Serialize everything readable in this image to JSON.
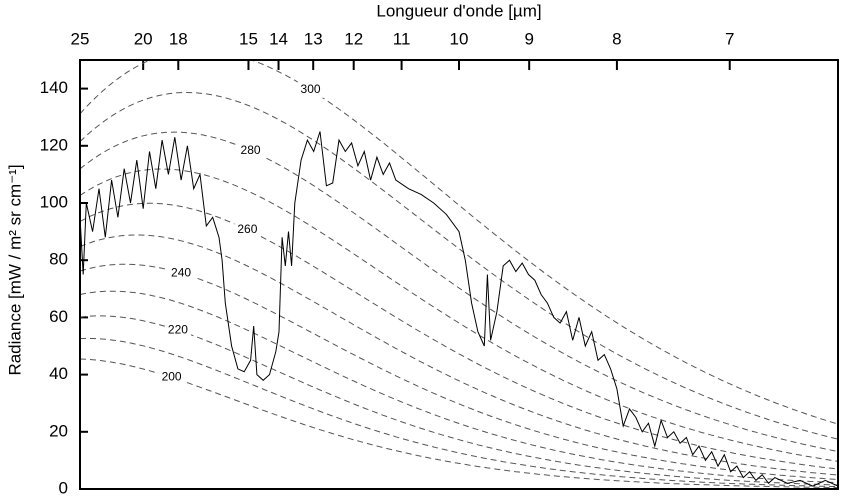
{
  "chart_data": {
    "type": "line",
    "x2_axis_label": "Longueur d'onde [µm]",
    "y_axis_label": "Radiance [mW / m² sr cm⁻¹]",
    "xlim": [
      400,
      1600
    ],
    "ylim": [
      0,
      150
    ],
    "yticks": [
      0,
      20,
      40,
      60,
      80,
      100,
      120,
      140
    ],
    "x2ticks": [
      {
        "value": 400,
        "label": "25"
      },
      {
        "value": 500,
        "label": "20"
      },
      {
        "value": 555.6,
        "label": "18"
      },
      {
        "value": 666.7,
        "label": "15"
      },
      {
        "value": 714.3,
        "label": "14"
      },
      {
        "value": 769.2,
        "label": "13"
      },
      {
        "value": 833.3,
        "label": "12"
      },
      {
        "value": 909.1,
        "label": "11"
      },
      {
        "value": 1000,
        "label": "10"
      },
      {
        "value": 1111.1,
        "label": "9"
      },
      {
        "value": 1250,
        "label": "8"
      },
      {
        "value": 1428.6,
        "label": "7"
      }
    ],
    "reference_curves": {
      "temperatures": [
        200,
        210,
        220,
        230,
        240,
        250,
        260,
        270,
        280,
        290,
        300
      ],
      "labeled": [
        200,
        220,
        240,
        260,
        280,
        300
      ],
      "color": "#555555",
      "dashed": true
    },
    "x": [
      400,
      405,
      410,
      420,
      430,
      440,
      450,
      460,
      470,
      480,
      490,
      500,
      510,
      520,
      530,
      540,
      550,
      560,
      570,
      580,
      590,
      600,
      610,
      620,
      625,
      630,
      640,
      650,
      660,
      670,
      675,
      680,
      690,
      700,
      710,
      715,
      720,
      725,
      730,
      735,
      740,
      750,
      760,
      770,
      780,
      790,
      800,
      810,
      820,
      830,
      840,
      850,
      860,
      870,
      880,
      890,
      900,
      920,
      940,
      960,
      980,
      1000,
      1010,
      1020,
      1030,
      1040,
      1045,
      1050,
      1060,
      1070,
      1080,
      1090,
      1100,
      1110,
      1120,
      1130,
      1140,
      1150,
      1160,
      1170,
      1180,
      1190,
      1200,
      1210,
      1220,
      1230,
      1240,
      1250,
      1260,
      1270,
      1280,
      1290,
      1300,
      1310,
      1320,
      1330,
      1340,
      1350,
      1360,
      1370,
      1380,
      1390,
      1400,
      1410,
      1420,
      1430,
      1440,
      1450,
      1460,
      1470,
      1480,
      1490,
      1500,
      1520,
      1540,
      1560,
      1580,
      1600
    ],
    "series": [
      {
        "color": "#000000",
        "values": [
          95,
          75,
          100,
          90,
          105,
          88,
          108,
          95,
          112,
          100,
          115,
          98,
          118,
          105,
          122,
          110,
          123,
          108,
          120,
          105,
          110,
          92,
          95,
          88,
          80,
          65,
          50,
          42,
          41,
          45,
          57,
          40,
          38,
          40,
          48,
          55,
          88,
          78,
          90,
          78,
          100,
          115,
          122,
          118,
          125,
          106,
          107,
          122,
          118,
          121,
          113,
          118,
          108,
          116,
          110,
          114,
          108,
          105,
          103,
          100,
          96,
          90,
          80,
          65,
          55,
          50,
          75,
          52,
          62,
          78,
          80,
          76,
          79,
          75,
          73,
          68,
          65,
          60,
          58,
          62,
          52,
          60,
          50,
          55,
          45,
          47,
          42,
          35,
          22,
          28,
          25,
          20,
          23,
          15,
          24,
          18,
          20,
          16,
          18,
          12,
          15,
          10,
          13,
          8,
          12,
          6,
          8,
          4,
          6,
          3,
          5,
          2,
          4,
          2,
          3,
          1,
          3,
          1
        ]
      }
    ]
  }
}
